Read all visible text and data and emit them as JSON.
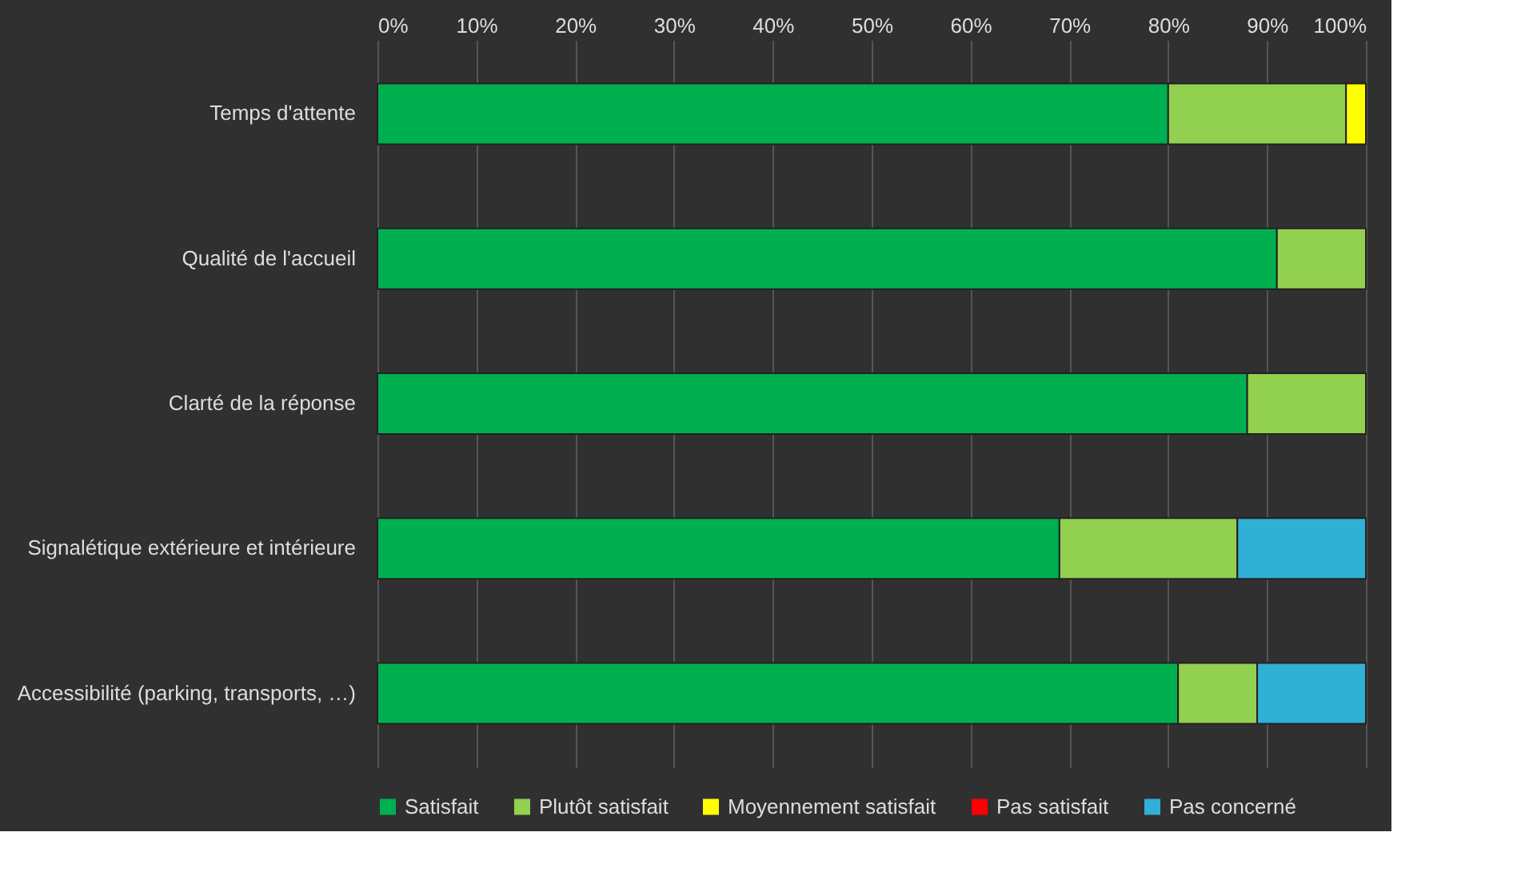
{
  "chart_data": {
    "type": "bar",
    "orientation": "horizontal",
    "stacked": true,
    "categories": [
      "Temps d'attente",
      "Qualité de l'accueil",
      "Clarté de la réponse",
      "Signalétique extérieure et intérieure",
      "Accessibilité (parking, transports, …)"
    ],
    "series": [
      {
        "name": "Satisfait",
        "color": "#00b050",
        "values": [
          80,
          91,
          88,
          69,
          81
        ]
      },
      {
        "name": "Plutôt satisfait",
        "color": "#92d050",
        "values": [
          18,
          9,
          12,
          18,
          8
        ]
      },
      {
        "name": "Moyennement satisfait",
        "color": "#ffff00",
        "values": [
          2,
          null,
          null,
          null,
          null
        ]
      },
      {
        "name": "Pas satisfait",
        "color": "#ff0000",
        "values": [
          null,
          null,
          null,
          null,
          null
        ]
      },
      {
        "name": "Pas concerné",
        "color": "#31b0d5",
        "values": [
          null,
          null,
          null,
          13,
          11
        ]
      }
    ],
    "xlim": [
      0,
      100
    ],
    "xticks": [
      {
        "value": 0,
        "label": "0%"
      },
      {
        "value": 10,
        "label": "10%"
      },
      {
        "value": 20,
        "label": "20%"
      },
      {
        "value": 30,
        "label": "30%"
      },
      {
        "value": 40,
        "label": "40%"
      },
      {
        "value": 50,
        "label": "50%"
      },
      {
        "value": 60,
        "label": "60%"
      },
      {
        "value": 70,
        "label": "70%"
      },
      {
        "value": 80,
        "label": "80%"
      },
      {
        "value": 90,
        "label": "90%"
      },
      {
        "value": 100,
        "label": "100%"
      }
    ],
    "grid": "x",
    "legend": "bottom"
  }
}
